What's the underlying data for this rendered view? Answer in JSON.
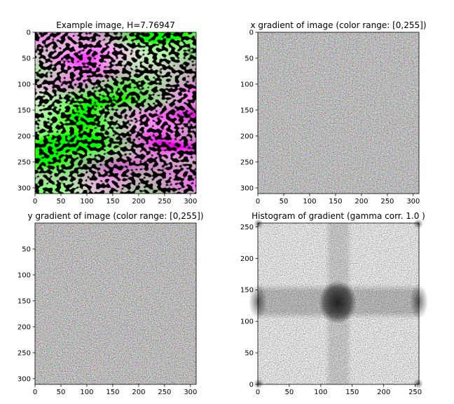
{
  "chart_data": [
    {
      "type": "heatmap",
      "title": "Example image, H=7.76947",
      "image_size": [
        311,
        311
      ],
      "xticks": [
        0,
        50,
        100,
        150,
        200,
        250,
        300
      ],
      "yticks": [
        0,
        50,
        100,
        150,
        200,
        250,
        300
      ],
      "xlim": [
        0,
        311
      ],
      "ylim": [
        311,
        0
      ],
      "y_axis_inverted": true,
      "content": "stripy labyrinth texture; diagonal bands in green and magenta with black dotted curls"
    },
    {
      "type": "heatmap",
      "title": "x gradient of image (color range: [0,255])",
      "image_size": [
        311,
        311
      ],
      "xticks": [
        0,
        50,
        100,
        150,
        200,
        250,
        300
      ],
      "yticks": [
        0,
        50,
        100,
        150,
        200,
        250,
        300
      ],
      "xlim": [
        0,
        311
      ],
      "ylim": [
        311,
        0
      ],
      "y_axis_inverted": true,
      "content": "high-frequency multicolor noise on gray"
    },
    {
      "type": "heatmap",
      "title": "y gradient of image (color range: [0,255])",
      "image_size": [
        311,
        311
      ],
      "xticks": [
        0,
        50,
        100,
        150,
        200,
        250,
        300
      ],
      "yticks": [
        50,
        100,
        150,
        200,
        250,
        300
      ],
      "xlim": [
        0,
        311
      ],
      "ylim": [
        311,
        0
      ],
      "y_axis_inverted": true,
      "content": "high-frequency multicolor noise on gray"
    },
    {
      "type": "heatmap",
      "title": "Histogram of gradient (gamma corr. 1.0 )",
      "xticks": [
        0,
        50,
        100,
        150,
        200,
        250
      ],
      "yticks": [
        0,
        50,
        100,
        150,
        200,
        250
      ],
      "xlim": [
        0,
        256
      ],
      "ylim": [
        0,
        256
      ],
      "y_axis_inverted": false,
      "colormap": "gray_r",
      "content": "2D histogram; dark blob centered near (128,128), darker horizontal band at y≈105-150 and vertical band at x≈110-150, dark at corners"
    }
  ]
}
